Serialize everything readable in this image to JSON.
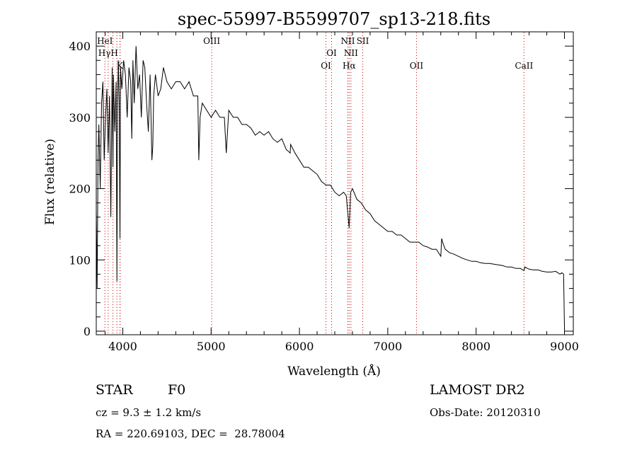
{
  "chart_data": {
    "type": "line",
    "title": "spec-55997-B5599707_sp13-218.fits",
    "xlabel": "Wavelength (Å)",
    "ylabel": "Flux (relative)",
    "xlim": [
      3700,
      9100
    ],
    "ylim": [
      -5,
      420
    ],
    "xticks": [
      4000,
      5000,
      6000,
      7000,
      8000,
      9000
    ],
    "yticks": [
      0,
      100,
      200,
      300,
      400
    ],
    "grid": false,
    "series": [
      {
        "x": [
          3700,
          3710,
          3720,
          3730,
          3745,
          3760,
          3775,
          3790,
          3805,
          3820,
          3835,
          3850,
          3865,
          3880,
          3889,
          3895,
          3910,
          3925,
          3934,
          3940,
          3950,
          3960,
          3968,
          3975,
          3990,
          4010,
          4030,
          4050,
          4070,
          4090,
          4102,
          4115,
          4130,
          4150,
          4170,
          4190,
          4210,
          4230,
          4250,
          4270,
          4290,
          4310,
          4330,
          4340,
          4350,
          4370,
          4400,
          4430,
          4460,
          4500,
          4550,
          4600,
          4650,
          4700,
          4750,
          4800,
          4850,
          4861,
          4875,
          4900,
          4950,
          5000,
          5050,
          5100,
          5150,
          5172,
          5200,
          5250,
          5300,
          5350,
          5400,
          5450,
          5500,
          5550,
          5600,
          5650,
          5700,
          5750,
          5800,
          5850,
          5895,
          5900,
          5950,
          6000,
          6050,
          6100,
          6150,
          6200,
          6250,
          6300,
          6350,
          6400,
          6450,
          6500,
          6530,
          6563,
          6580,
          6600,
          6650,
          6700,
          6750,
          6800,
          6850,
          6900,
          6950,
          7000,
          7050,
          7100,
          7150,
          7200,
          7250,
          7300,
          7350,
          7400,
          7450,
          7500,
          7550,
          7600,
          7610,
          7620,
          7650,
          7700,
          7750,
          7800,
          7850,
          7900,
          7950,
          8000,
          8050,
          8100,
          8150,
          8200,
          8250,
          8300,
          8350,
          8400,
          8450,
          8500,
          8542,
          8550,
          8600,
          8650,
          8700,
          8750,
          8800,
          8850,
          8900,
          8950,
          8970,
          8990,
          9000
        ],
        "y": [
          170,
          60,
          240,
          290,
          200,
          320,
          350,
          240,
          300,
          340,
          250,
          330,
          160,
          370,
          230,
          360,
          280,
          350,
          70,
          300,
          380,
          320,
          130,
          370,
          340,
          380,
          360,
          300,
          370,
          350,
          270,
          380,
          320,
          400,
          340,
          360,
          300,
          380,
          370,
          320,
          280,
          360,
          240,
          260,
          330,
          360,
          330,
          340,
          370,
          350,
          340,
          350,
          350,
          340,
          350,
          330,
          330,
          240,
          300,
          320,
          310,
          300,
          310,
          300,
          300,
          250,
          310,
          300,
          300,
          290,
          290,
          285,
          275,
          280,
          275,
          280,
          270,
          265,
          270,
          255,
          250,
          262,
          250,
          240,
          230,
          230,
          225,
          220,
          210,
          205,
          205,
          195,
          190,
          195,
          190,
          145,
          195,
          200,
          185,
          180,
          170,
          165,
          155,
          150,
          145,
          140,
          140,
          135,
          135,
          130,
          125,
          125,
          125,
          120,
          118,
          115,
          115,
          105,
          130,
          125,
          115,
          110,
          108,
          105,
          102,
          100,
          98,
          98,
          96,
          95,
          95,
          94,
          93,
          92,
          90,
          90,
          88,
          88,
          85,
          90,
          87,
          86,
          86,
          84,
          83,
          83,
          84,
          80,
          82,
          80,
          5
        ]
      }
    ],
    "lines": [
      {
        "x": 3798,
        "label": "HeI",
        "row": 1
      },
      {
        "x": 3835,
        "label": "HγH",
        "row": 2
      },
      {
        "x": 3968,
        "label": "K",
        "row": 3
      },
      {
        "x": 5007,
        "label": "OIII",
        "row": 1
      },
      {
        "x": 6300,
        "label": "OI",
        "row": 3
      },
      {
        "x": 6364,
        "label": "OI",
        "row": 2
      },
      {
        "x": 6548,
        "label": "NII",
        "row": 1
      },
      {
        "x": 6563,
        "label": "Hα",
        "row": 3
      },
      {
        "x": 6583,
        "label": "NII",
        "row": 2
      },
      {
        "x": 6717,
        "label": "SII",
        "row": 1
      },
      {
        "x": 7325,
        "label": "OII",
        "row": 3
      },
      {
        "x": 8542,
        "label": "CaII",
        "row": 3
      }
    ],
    "extra_line_markers": [
      3889,
      3934,
      3970
    ],
    "colors": {
      "spectrum": "#000000",
      "line_marker": "#cc0000",
      "axes": "#000000"
    }
  },
  "info": {
    "object_type": "STAR",
    "subclass": "F0",
    "survey": "LAMOST DR2",
    "cz": "cz = 9.3 ± 1.2 km/s",
    "obs_date": "Obs-Date: 20120310",
    "coords": "RA = 220.69103, DEC =  28.78004"
  }
}
